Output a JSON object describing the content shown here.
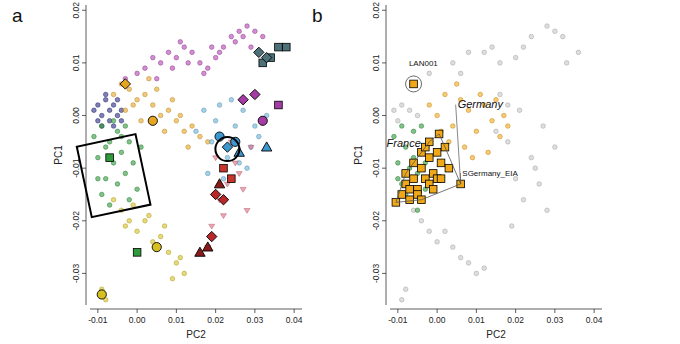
{
  "chart_data": [
    {
      "type": "scatter",
      "title": "a",
      "x_label": "PC2",
      "y_label": "PC1",
      "xlim": [
        -0.012,
        0.042
      ],
      "ylim": [
        -0.036,
        0.021
      ],
      "xticks": [
        -0.01,
        {
          "value": 0,
          "label": "0.00"
        },
        0.01,
        0.02,
        0.03,
        0.04
      ],
      "yticks": [
        -0.03,
        -0.02,
        -0.01,
        {
          "value": 0,
          "label": "0.00"
        },
        0.01,
        0.02
      ],
      "series": [
        {
          "color": "#b344b3",
          "marker": "point",
          "x": [
            -0.003,
            0.0,
            0.002,
            0.004,
            0.006,
            0.008,
            0.01,
            0.012,
            0.014,
            0.016,
            0.018,
            0.02,
            0.022,
            0.024,
            0.026,
            0.028,
            0.03,
            0.032,
            0.005,
            0.009,
            0.013,
            0.017,
            0.021,
            0.025,
            0.029,
            0.011,
            0.019,
            0.027
          ],
          "values": [
            0.007,
            0.008,
            0.009,
            0.011,
            0.01,
            0.012,
            0.011,
            0.013,
            0.012,
            0.01,
            0.009,
            0.011,
            0.013,
            0.015,
            0.016,
            0.017,
            0.016,
            0.015,
            0.007,
            0.009,
            0.01,
            0.008,
            0.012,
            0.014,
            0.013,
            0.014,
            0.013,
            0.015
          ]
        },
        {
          "color": "#2a2a86",
          "marker": "point",
          "x": [
            -0.011,
            -0.01,
            -0.009,
            -0.008,
            -0.007,
            -0.006,
            -0.005,
            -0.004,
            -0.009,
            -0.007,
            -0.005,
            -0.008,
            -0.006,
            -0.01,
            -0.004
          ],
          "values": [
            0.001,
            0.002,
            0.0,
            0.003,
            0.001,
            0.002,
            0.0,
            0.001,
            -0.002,
            -0.001,
            0.003,
            0.004,
            -0.002,
            -0.001,
            -0.001
          ]
        },
        {
          "color": "#e6a521",
          "marker": "point",
          "x": [
            -0.006,
            -0.004,
            -0.002,
            0.0,
            0.002,
            0.004,
            0.006,
            0.008,
            0.01,
            0.012,
            0.014,
            0.016,
            0.018,
            0.001,
            0.003,
            0.005,
            0.007,
            -0.003,
            0.009,
            0.011,
            -0.001,
            0.013
          ],
          "values": [
            0.004,
            0.006,
            0.005,
            0.003,
            0.004,
            0.002,
            0.0,
            0.001,
            -0.001,
            -0.003,
            -0.002,
            -0.004,
            -0.005,
            -0.001,
            0.007,
            0.005,
            -0.003,
            0.001,
            0.003,
            0.0,
            0.002,
            -0.006
          ]
        },
        {
          "color": "#2f9a3a",
          "marker": "point",
          "x": [
            -0.011,
            -0.01,
            -0.009,
            -0.008,
            -0.007,
            -0.006,
            -0.005,
            -0.004,
            -0.003,
            -0.002,
            -0.001,
            0.0,
            0.001,
            -0.009,
            -0.007,
            -0.005,
            -0.003,
            -0.008,
            -0.006,
            -0.004,
            -0.01,
            -0.002
          ],
          "values": [
            -0.004,
            -0.008,
            -0.002,
            -0.012,
            -0.005,
            -0.009,
            -0.003,
            -0.007,
            -0.011,
            -0.005,
            -0.009,
            -0.014,
            -0.006,
            -0.015,
            -0.017,
            -0.013,
            -0.002,
            -0.006,
            -0.001,
            -0.004,
            -0.012,
            -0.016
          ]
        },
        {
          "color": "#d6c021",
          "marker": "point",
          "x": [
            -0.006,
            -0.004,
            -0.002,
            0.0,
            0.002,
            0.004,
            0.006,
            0.008,
            0.01,
            0.012,
            -0.001,
            0.003,
            0.007,
            0.011,
            -0.003,
            0.005,
            0.009,
            -0.009,
            -0.008
          ],
          "values": [
            -0.016,
            -0.018,
            -0.02,
            -0.022,
            -0.02,
            -0.024,
            -0.023,
            -0.026,
            -0.028,
            -0.03,
            -0.017,
            -0.019,
            -0.021,
            -0.027,
            -0.021,
            -0.025,
            -0.031,
            -0.033,
            -0.035
          ]
        },
        {
          "color": "#67b3d8",
          "marker": "point",
          "x": [
            0.015,
            0.017,
            0.019,
            0.021,
            0.023,
            0.025,
            0.027,
            0.029,
            0.031,
            0.033,
            0.018,
            0.022,
            0.026,
            0.03,
            0.02,
            0.024,
            0.028
          ],
          "values": [
            -0.003,
            0.001,
            -0.005,
            0.002,
            -0.008,
            -0.002,
            0.001,
            -0.006,
            -0.004,
            0.0,
            -0.011,
            -0.012,
            -0.009,
            -0.002,
            -0.001,
            0.003,
            -0.01
          ]
        },
        {
          "color": "#e2768a",
          "marker": "small-triangle",
          "x": [
            0.019,
            0.021,
            0.023,
            0.025,
            0.027,
            0.029,
            0.018,
            0.022,
            0.026,
            0.02,
            0.024,
            0.028
          ],
          "values": [
            -0.021,
            -0.016,
            -0.013,
            -0.009,
            -0.014,
            -0.006,
            -0.025,
            -0.019,
            -0.011,
            -0.008,
            -0.005,
            -0.018
          ]
        },
        {
          "color": "#4d7178",
          "marker": "square",
          "x": [
            0.032,
            0.034,
            0.036,
            0.038
          ],
          "values": [
            0.01,
            0.011,
            0.013,
            0.013
          ]
        },
        {
          "color": "#e6a521",
          "marker": "circle",
          "x": [
            0.004
          ],
          "values": [
            -0.001
          ]
        },
        {
          "color": "#e6a521",
          "marker": "diamond",
          "x": [
            -0.003
          ],
          "values": [
            0.006
          ]
        },
        {
          "color": "#2f9a3a",
          "marker": "square",
          "x": [
            -0.007,
            0.0
          ],
          "values": [
            -0.008,
            -0.026
          ]
        },
        {
          "color": "#d6c021",
          "marker": "circle",
          "x": [
            0.005,
            -0.009
          ],
          "values": [
            -0.025,
            -0.034
          ]
        },
        {
          "color": "#a53ca5",
          "marker": "diamond",
          "x": [
            0.03,
            0.027
          ],
          "values": [
            0.004,
            0.003
          ]
        },
        {
          "color": "#a53ca5",
          "marker": "square",
          "x": [
            0.036
          ],
          "values": [
            0.002
          ]
        },
        {
          "color": "#a53ca5",
          "marker": "circle",
          "x": [
            0.032
          ],
          "values": [
            -0.001
          ]
        },
        {
          "color": "#3b97cf",
          "marker": "circle",
          "x": [
            0.021,
            0.025
          ],
          "values": [
            -0.004,
            -0.005
          ]
        },
        {
          "color": "#3b97cf",
          "marker": "diamond",
          "x": [
            0.023
          ],
          "values": [
            -0.006
          ]
        },
        {
          "color": "#3b97cf",
          "marker": "triangle",
          "x": [
            0.033,
            0.026
          ],
          "values": [
            -0.006,
            -0.007
          ]
        },
        {
          "color": "#c8342c",
          "marker": "square",
          "x": [
            0.022,
            0.024
          ],
          "values": [
            -0.01,
            -0.012
          ]
        },
        {
          "color": "#b8282a",
          "marker": "diamond",
          "x": [
            0.02,
            0.022,
            0.019
          ],
          "values": [
            -0.015,
            -0.016,
            -0.023
          ]
        },
        {
          "color": "#8c1a1a",
          "marker": "triangle",
          "x": [
            0.016,
            0.018,
            0.021
          ],
          "values": [
            -0.026,
            -0.025,
            -0.013
          ]
        },
        {
          "color": "#4d7178",
          "marker": "diamond",
          "x": [
            0.031,
            0.033
          ],
          "values": [
            0.012,
            0.011
          ]
        }
      ]
    },
    {
      "type": "scatter",
      "title": "b",
      "x_label": "PC2",
      "y_label": "PC1",
      "xlim": [
        -0.012,
        0.042
      ],
      "ylim": [
        -0.036,
        0.021
      ],
      "xticks": [
        -0.01,
        {
          "value": 0,
          "label": "0.00"
        },
        0.01,
        0.02,
        0.03,
        0.04
      ],
      "yticks": [
        -0.03,
        -0.02,
        -0.01,
        {
          "value": 0,
          "label": "0.00"
        },
        0.01,
        0.02
      ],
      "series": [
        {
          "color": "#c8c8c8",
          "marker": "point",
          "x": [
            -0.002,
            0.004,
            0.008,
            0.012,
            0.016,
            0.02,
            0.024,
            0.028,
            0.032,
            0.006,
            0.014,
            0.022,
            0.03,
            -0.011,
            -0.009,
            -0.007,
            -0.005,
            -0.01,
            -0.006,
            -0.004,
            -0.002,
            0.0,
            0.002,
            0.004,
            0.006,
            0.008,
            0.01,
            0.012,
            -0.008,
            -0.009,
            0.015,
            0.018,
            0.021,
            0.024,
            0.027,
            0.03,
            0.02,
            0.025,
            0.019,
            0.022,
            0.026,
            0.028,
            0.033,
            0.036,
            0.018,
            0.016
          ],
          "values": [
            0.008,
            0.01,
            0.012,
            0.012,
            0.01,
            0.011,
            0.015,
            0.017,
            0.015,
            0.008,
            0.013,
            0.013,
            0.016,
            0.001,
            0.002,
            0.001,
            0.0,
            -0.001,
            -0.018,
            -0.02,
            -0.022,
            -0.024,
            -0.022,
            -0.025,
            -0.027,
            -0.028,
            -0.03,
            -0.029,
            -0.033,
            -0.035,
            -0.003,
            -0.005,
            0.001,
            -0.008,
            -0.002,
            -0.006,
            -0.012,
            -0.01,
            -0.021,
            -0.016,
            -0.013,
            -0.018,
            0.01,
            0.012,
            0.002,
            0.004
          ]
        },
        {
          "color": "#2f9a3a",
          "marker": "point",
          "x": [
            -0.011,
            -0.01,
            -0.009,
            -0.008,
            -0.007,
            -0.006,
            -0.005,
            -0.004,
            -0.003,
            -0.002,
            -0.009,
            -0.007,
            -0.005,
            -0.008,
            -0.006,
            -0.01,
            -0.004,
            -0.003
          ],
          "values": [
            -0.004,
            -0.009,
            -0.013,
            -0.006,
            -0.016,
            -0.003,
            -0.011,
            -0.007,
            -0.014,
            -0.005,
            -0.002,
            -0.01,
            -0.018,
            -0.015,
            -0.008,
            -0.012,
            -0.002,
            -0.009
          ]
        },
        {
          "color": "#f0a818",
          "marker": "point",
          "x": [
            -0.002,
            0.0,
            0.002,
            0.004,
            0.006,
            0.008,
            0.01,
            0.012,
            0.014,
            0.016,
            0.018,
            0.003,
            0.007,
            0.011,
            0.015,
            0.005,
            0.009,
            0.013,
            0.001,
            0.017
          ],
          "values": [
            0.002,
            0.0,
            0.004,
            -0.002,
            0.003,
            0.001,
            -0.003,
            0.002,
            -0.001,
            -0.004,
            -0.002,
            -0.005,
            -0.006,
            0.004,
            0.003,
            0.006,
            -0.008,
            -0.007,
            -0.003,
            0.0
          ]
        },
        {
          "color": "#f0a818",
          "marker": "square",
          "x": [
            -0.0105,
            -0.009,
            -0.008,
            -0.007,
            -0.006,
            -0.005,
            -0.004,
            -0.003,
            -0.002,
            -0.001,
            0.0,
            0.001,
            0.002,
            0.003,
            0.006,
            -0.008,
            -0.006,
            -0.004,
            -0.002,
            0.0,
            -0.005,
            -0.003,
            -0.001,
            0.001,
            -0.007,
            -0.004,
            0.0005,
            -0.002
          ],
          "values": [
            -0.0165,
            -0.015,
            -0.013,
            -0.016,
            -0.012,
            -0.014,
            -0.01,
            -0.012,
            -0.008,
            -0.011,
            -0.007,
            -0.009,
            -0.006,
            -0.01,
            -0.013,
            -0.011,
            -0.009,
            -0.007,
            -0.013,
            -0.012,
            -0.015,
            -0.006,
            -0.014,
            -0.012,
            -0.014,
            -0.016,
            -0.0035,
            -0.005
          ]
        },
        {
          "color": "#f0a818",
          "marker": "square",
          "x": [
            -0.006
          ],
          "values": [
            0.006
          ]
        }
      ],
      "annotations": [
        {
          "text": "Germany",
          "x": 0.011,
          "y": 0.0015
        },
        {
          "text": "France",
          "x": -0.0085,
          "y": -0.006
        },
        {
          "text": "LAN001",
          "x": -0.0035,
          "y": 0.0095
        },
        {
          "text": "SGermany_EIA",
          "x": 0.0135,
          "y": -0.0115
        }
      ]
    }
  ]
}
